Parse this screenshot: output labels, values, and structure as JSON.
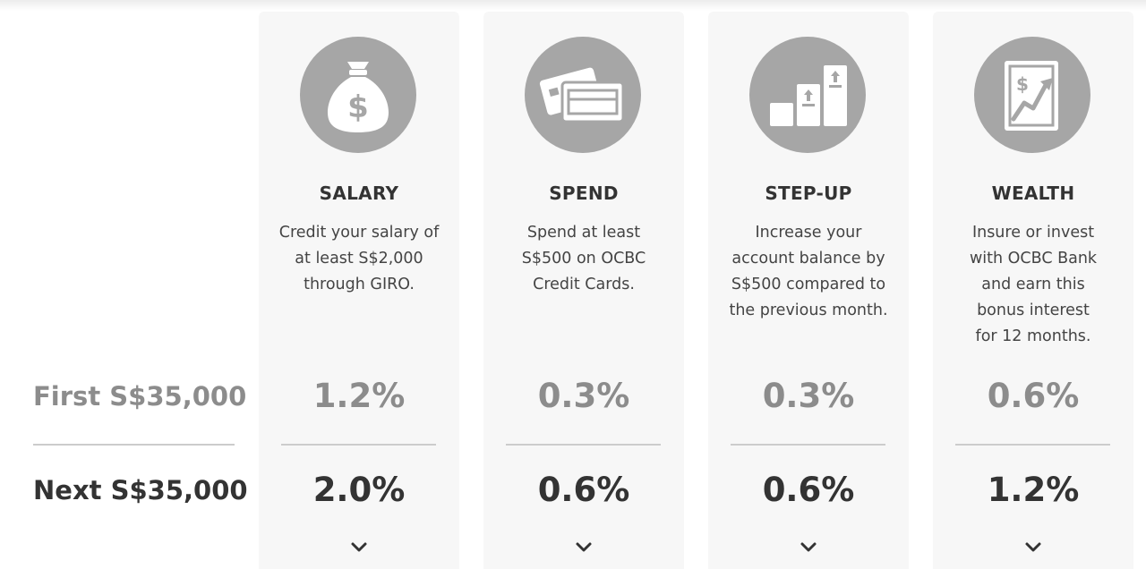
{
  "row_labels": {
    "first": "First S$35,000",
    "next": "Next S$35,000"
  },
  "columns": [
    {
      "title": "SALARY",
      "icon": "money-bag-icon",
      "desc": [
        "Credit your salary of",
        "at least S$2,000",
        "through GIRO."
      ],
      "rate_first": "1.2%",
      "rate_next": "2.0%"
    },
    {
      "title": "SPEND",
      "icon": "credit-cards-icon",
      "desc": [
        "Spend at least",
        "S$500 on OCBC",
        "Credit Cards."
      ],
      "rate_first": "0.3%",
      "rate_next": "0.6%"
    },
    {
      "title": "STEP-UP",
      "icon": "step-up-bars-icon",
      "desc": [
        "Increase your",
        "account balance by",
        "S$500 compared to",
        "the previous month."
      ],
      "rate_first": "0.3%",
      "rate_next": "0.6%"
    },
    {
      "title": "WEALTH",
      "icon": "wealth-chart-icon",
      "desc": [
        "Insure or invest",
        "with OCBC Bank",
        "and earn this",
        "bonus interest",
        "for 12 months."
      ],
      "rate_first": "0.6%",
      "rate_next": "1.2%"
    }
  ],
  "colors": {
    "column_bg": "#f7f7f7",
    "icon_circle": "#a6a6a6",
    "text_dark": "#333333",
    "text_muted": "#8c8c8c",
    "divider": "#cccccc"
  }
}
